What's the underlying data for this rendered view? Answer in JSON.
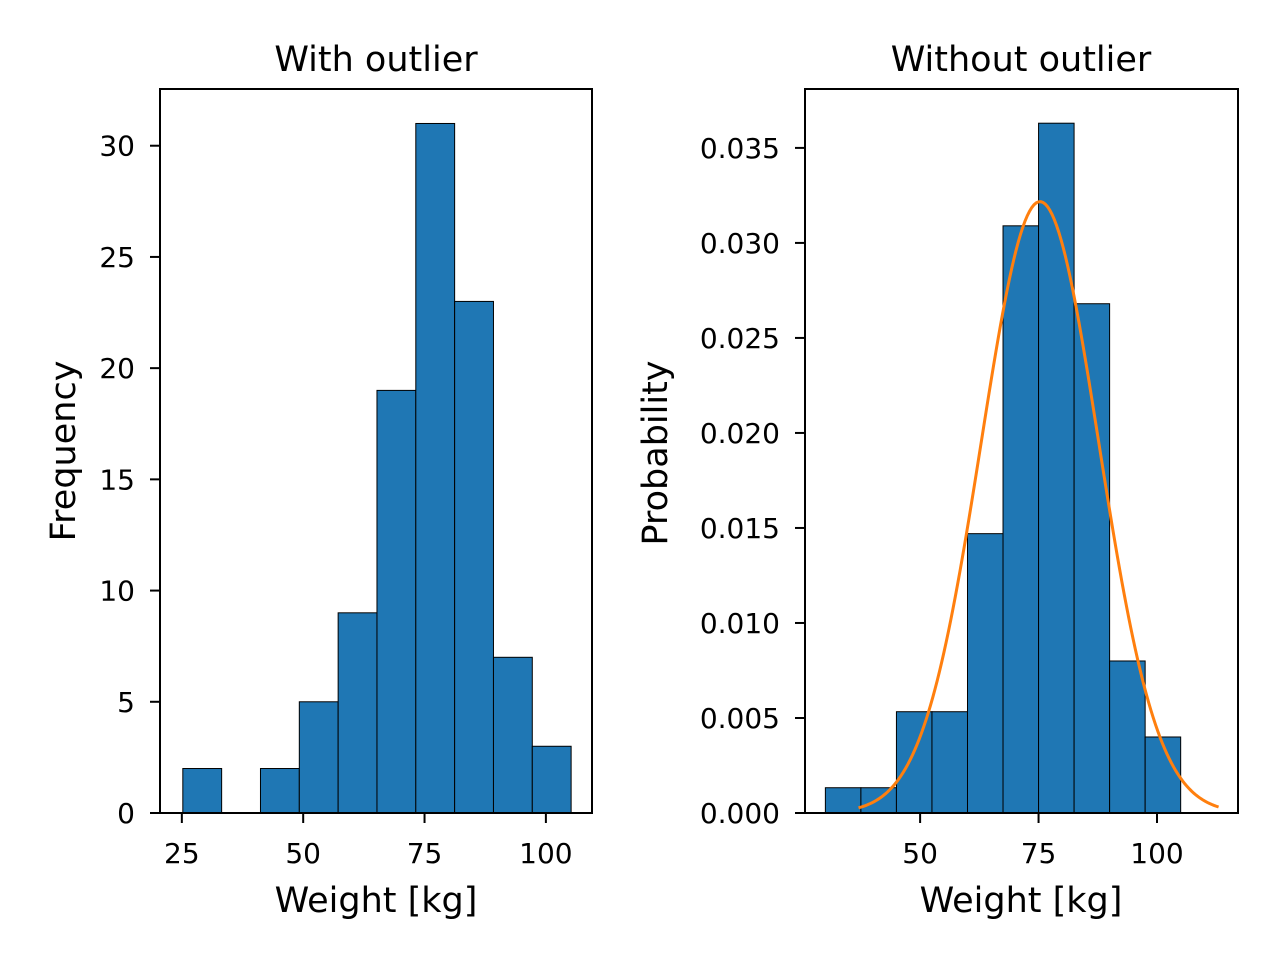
{
  "colors": {
    "bar_fill": "#1f77b4",
    "bar_edge": "#000000",
    "fit_line": "#ff7f0e"
  },
  "chart_data": [
    {
      "type": "bar",
      "title": "With outlier",
      "xlabel": "Weight [kg]",
      "ylabel": "Frequency",
      "xlim": [
        20.5,
        109.5
      ],
      "ylim": [
        0,
        32.55
      ],
      "xticks": [
        25,
        50,
        75,
        100
      ],
      "yticks": [
        0,
        5,
        10,
        15,
        20,
        25,
        30
      ],
      "bins": [
        {
          "x0": 25.2,
          "x1": 33.2,
          "value": 2
        },
        {
          "x0": 33.2,
          "x1": 41.2,
          "value": 0
        },
        {
          "x0": 41.2,
          "x1": 49.2,
          "value": 2
        },
        {
          "x0": 49.2,
          "x1": 57.2,
          "value": 5
        },
        {
          "x0": 57.2,
          "x1": 65.2,
          "value": 9
        },
        {
          "x0": 65.2,
          "x1": 73.2,
          "value": 19
        },
        {
          "x0": 73.2,
          "x1": 81.2,
          "value": 31
        },
        {
          "x0": 81.2,
          "x1": 89.2,
          "value": 23
        },
        {
          "x0": 89.2,
          "x1": 97.2,
          "value": 7
        },
        {
          "x0": 97.2,
          "x1": 105.2,
          "value": 3
        }
      ]
    },
    {
      "type": "bar",
      "title": "Without outlier",
      "xlabel": "Weight [kg]",
      "ylabel": "Probability",
      "xlim": [
        25.7,
        117.1
      ],
      "ylim": [
        0,
        0.0381
      ],
      "xticks": [
        50,
        75,
        100
      ],
      "yticks": [
        "0.000",
        "0.005",
        "0.010",
        "0.015",
        "0.020",
        "0.025",
        "0.030",
        "0.035"
      ],
      "bins": [
        {
          "x0": 30.0,
          "x1": 37.5,
          "value": 0.00133
        },
        {
          "x0": 37.5,
          "x1": 45.0,
          "value": 0.00133
        },
        {
          "x0": 45.0,
          "x1": 52.5,
          "value": 0.00533
        },
        {
          "x0": 52.5,
          "x1": 60.0,
          "value": 0.00533
        },
        {
          "x0": 60.0,
          "x1": 67.5,
          "value": 0.0147
        },
        {
          "x0": 67.5,
          "x1": 75.0,
          "value": 0.0309
        },
        {
          "x0": 75.0,
          "x1": 82.5,
          "value": 0.0363
        },
        {
          "x0": 82.5,
          "x1": 90.0,
          "value": 0.0268
        },
        {
          "x0": 90.0,
          "x1": 97.5,
          "value": 0.008
        },
        {
          "x0": 97.5,
          "x1": 105.0,
          "value": 0.004
        }
      ],
      "fit_curve": {
        "type": "normal",
        "mean": 75.3,
        "std": 12.4,
        "x_range": [
          37,
          113
        ]
      }
    }
  ]
}
